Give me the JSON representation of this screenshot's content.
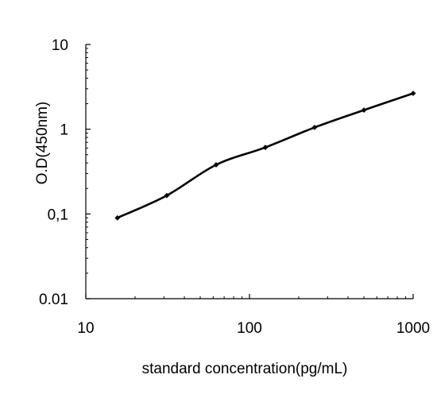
{
  "chart_data": {
    "type": "line",
    "title": "",
    "xlabel": "standard concentration(pg/mL)",
    "ylabel": "O.D(450nm)",
    "x_scale": "log",
    "y_scale": "log",
    "xlim": [
      10,
      1000
    ],
    "ylim": [
      0.01,
      10
    ],
    "x_tick_labels": [
      "10",
      "100",
      "1000"
    ],
    "y_tick_labels": [
      "10",
      "1",
      "0,1",
      "0.01"
    ],
    "grid": false,
    "legend": "none",
    "line_color": "#000000",
    "series": [
      {
        "x": [
          15.6,
          31.25,
          62.5,
          125,
          250,
          500,
          1000
        ],
        "y": [
          0.09,
          0.165,
          0.38,
          0.61,
          1.05,
          1.68,
          2.65
        ]
      }
    ]
  }
}
